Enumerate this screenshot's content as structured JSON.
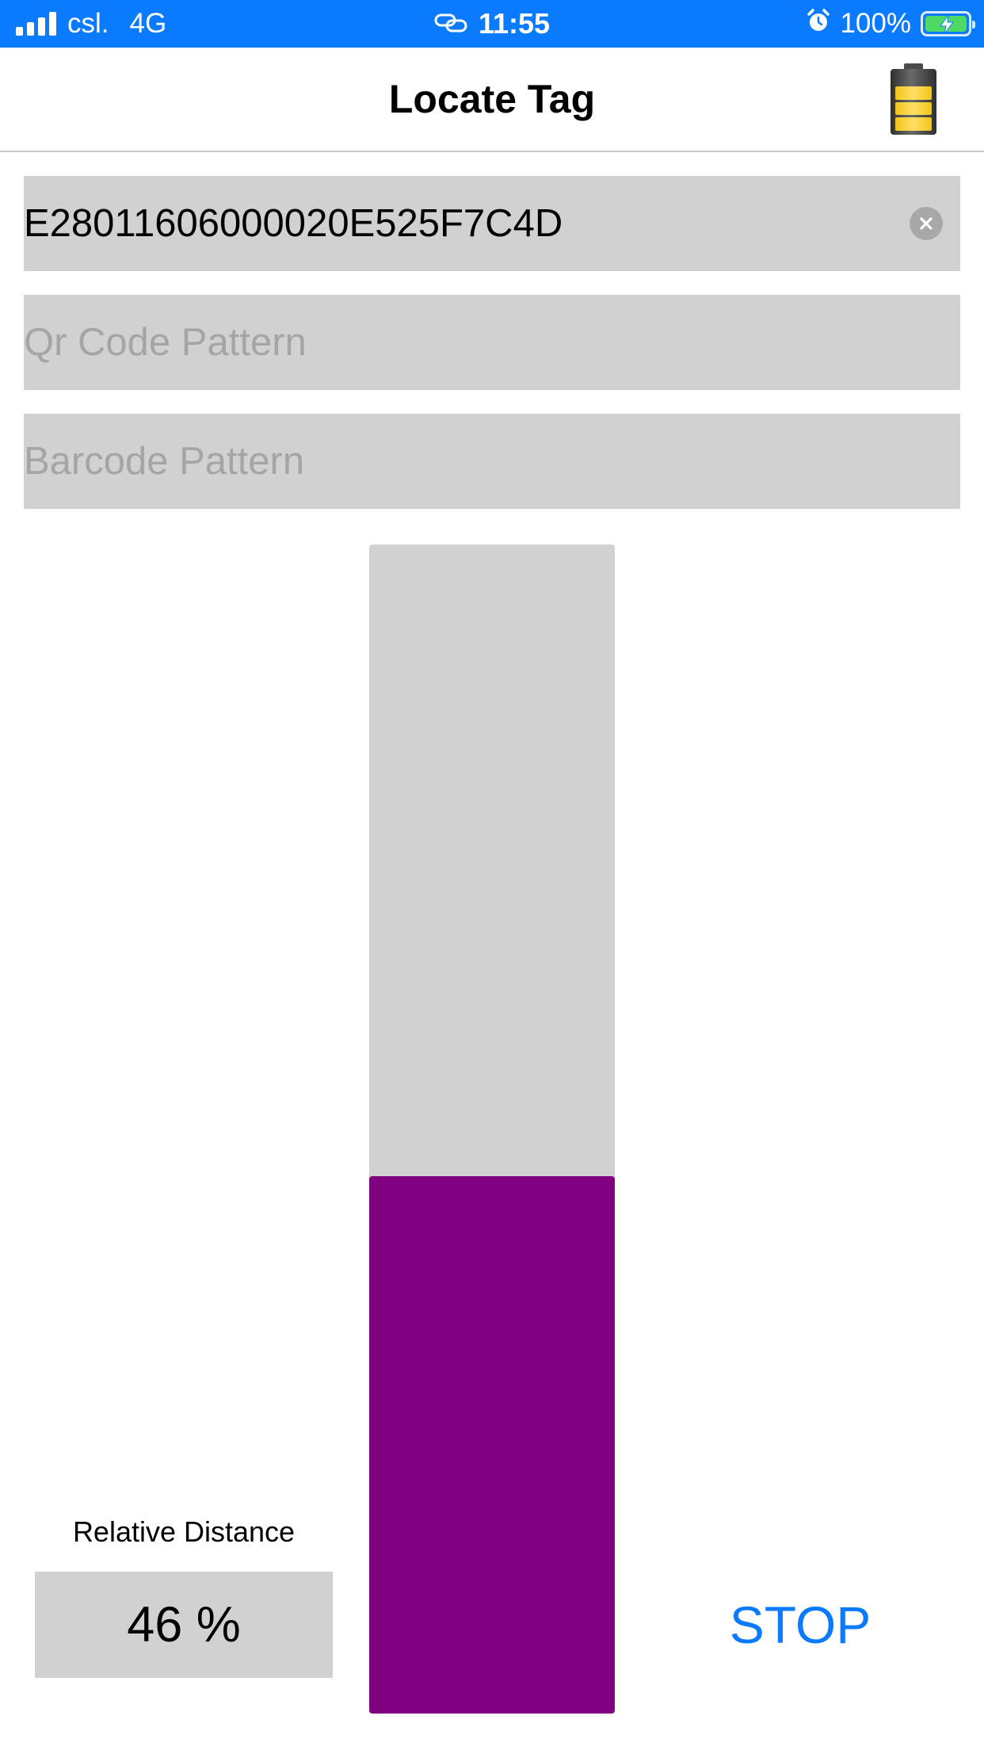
{
  "status_bar": {
    "carrier": "csl.",
    "network": "4G",
    "time": "11:55",
    "battery_percent": "100%",
    "background_color": "#0a7aff",
    "icons": [
      "signal-bars-icon",
      "link-icon",
      "alarm-clock-icon",
      "charging-battery-icon"
    ]
  },
  "nav": {
    "title": "Locate Tag",
    "reader_battery_icon": "reader-battery-icon"
  },
  "form": {
    "epc_value": "E28011606000020E525F7C4D",
    "qr_placeholder": "Qr Code Pattern",
    "barcode_placeholder": "Barcode Pattern",
    "clear_icon": "clear-circle-icon"
  },
  "meter": {
    "level_fraction": 0.46,
    "fill_color": "#800080",
    "track_color": "#d1d1d1"
  },
  "distance": {
    "label": "Relative Distance",
    "value": "46 %"
  },
  "actions": {
    "stop_label": "STOP",
    "accent_color": "#0a7aff"
  }
}
